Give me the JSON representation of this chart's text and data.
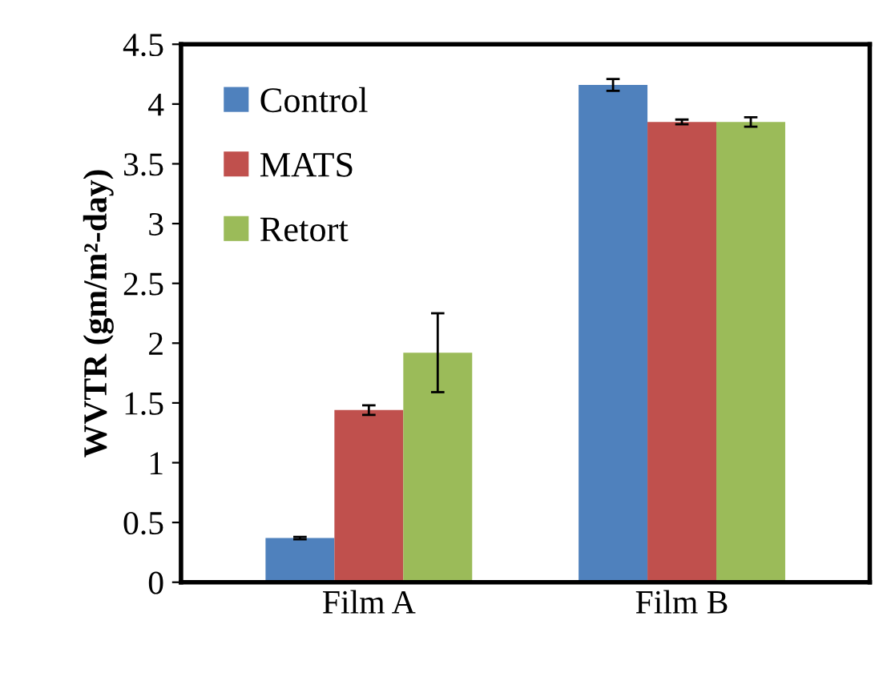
{
  "chart_data": {
    "type": "bar",
    "ylabel": "WVTR (gm/m²-day)",
    "categories": [
      "Film A",
      "Film B"
    ],
    "series": [
      {
        "name": "Control",
        "color": "#4f81bd",
        "values": [
          0.37,
          4.16
        ],
        "errors": [
          0.01,
          0.05
        ]
      },
      {
        "name": "MATS",
        "color": "#c0504d",
        "values": [
          1.44,
          3.85
        ],
        "errors": [
          0.04,
          0.02
        ]
      },
      {
        "name": "Retort",
        "color": "#9bbb59",
        "values": [
          1.92,
          3.85
        ],
        "errors": [
          0.33,
          0.04
        ]
      }
    ],
    "ylim": [
      0,
      4.5
    ],
    "yticks": [
      0,
      0.5,
      1,
      1.5,
      2,
      2.5,
      3,
      3.5,
      4,
      4.5
    ],
    "grid": false,
    "legend": "top left"
  }
}
